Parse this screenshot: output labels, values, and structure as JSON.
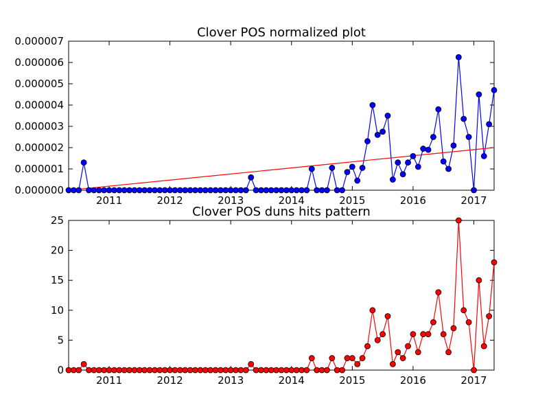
{
  "chart_data": [
    {
      "type": "line",
      "title": "Clover POS normalized plot",
      "xlabel": "",
      "ylabel": "",
      "grid": false,
      "marker": "circle",
      "color": "#0000ff",
      "trend_color": "#ff0000",
      "x_start": "2010-05",
      "x_step_months": 1,
      "xlim": [
        "2010-05",
        "2017-05"
      ],
      "ylim": [
        0,
        7e-06
      ],
      "x_ticks": [
        {
          "label": "2011",
          "x": "2011-01"
        },
        {
          "label": "2012",
          "x": "2012-01"
        },
        {
          "label": "2013",
          "x": "2013-01"
        },
        {
          "label": "2014",
          "x": "2014-01"
        },
        {
          "label": "2015",
          "x": "2015-01"
        },
        {
          "label": "2016",
          "x": "2016-01"
        },
        {
          "label": "2017",
          "x": "2017-01"
        }
      ],
      "y_ticks": [
        {
          "label": "0.000000",
          "y": 0
        },
        {
          "label": "0.000001",
          "y": 1e-06
        },
        {
          "label": "0.000002",
          "y": 2e-06
        },
        {
          "label": "0.000003",
          "y": 3e-06
        },
        {
          "label": "0.000004",
          "y": 4e-06
        },
        {
          "label": "0.000005",
          "y": 5e-06
        },
        {
          "label": "0.000006",
          "y": 6e-06
        },
        {
          "label": "0.000007",
          "y": 7e-06
        }
      ],
      "trend": {
        "start": 0,
        "end": 2e-06
      },
      "series": [
        {
          "values": [
            0,
            0,
            0,
            1.3e-06,
            0,
            0,
            0,
            0,
            0,
            0,
            0,
            0,
            0,
            0,
            0,
            0,
            0,
            0,
            0,
            0,
            0,
            0,
            0,
            0,
            0,
            0,
            0,
            0,
            0,
            0,
            0,
            0,
            0,
            0,
            0,
            0,
            6e-07,
            0,
            0,
            0,
            0,
            0,
            0,
            0,
            0,
            0,
            0,
            0,
            1e-06,
            0,
            0,
            0,
            1.05e-06,
            0,
            0,
            8.5e-07,
            1.1e-06,
            4.5e-07,
            1.05e-06,
            2.3e-06,
            4e-06,
            2.6e-06,
            2.75e-06,
            3.5e-06,
            5e-07,
            1.3e-06,
            7.5e-07,
            1.3e-06,
            1.6e-06,
            1.1e-06,
            1.95e-06,
            1.9e-06,
            2.5e-06,
            3.8e-06,
            1.35e-06,
            1e-06,
            2.1e-06,
            6.25e-06,
            3.35e-06,
            2.5e-06,
            0,
            4.5e-06,
            1.6e-06,
            3.1e-06,
            4.7e-06
          ]
        }
      ]
    },
    {
      "type": "line",
      "title": "Clover POS duns hits pattern",
      "xlabel": "",
      "ylabel": "",
      "grid": false,
      "marker": "circle",
      "color": "#ff0000",
      "x_start": "2010-05",
      "x_step_months": 1,
      "xlim": [
        "2010-05",
        "2017-05"
      ],
      "ylim": [
        0,
        25
      ],
      "x_ticks": [
        {
          "label": "2011",
          "x": "2011-01"
        },
        {
          "label": "2012",
          "x": "2012-01"
        },
        {
          "label": "2013",
          "x": "2013-01"
        },
        {
          "label": "2014",
          "x": "2014-01"
        },
        {
          "label": "2015",
          "x": "2015-01"
        },
        {
          "label": "2016",
          "x": "2016-01"
        },
        {
          "label": "2017",
          "x": "2017-01"
        }
      ],
      "y_ticks": [
        {
          "label": "0",
          "y": 0
        },
        {
          "label": "5",
          "y": 5
        },
        {
          "label": "10",
          "y": 10
        },
        {
          "label": "15",
          "y": 15
        },
        {
          "label": "20",
          "y": 20
        },
        {
          "label": "25",
          "y": 25
        }
      ],
      "series": [
        {
          "values": [
            0,
            0,
            0,
            1,
            0,
            0,
            0,
            0,
            0,
            0,
            0,
            0,
            0,
            0,
            0,
            0,
            0,
            0,
            0,
            0,
            0,
            0,
            0,
            0,
            0,
            0,
            0,
            0,
            0,
            0,
            0,
            0,
            0,
            0,
            0,
            0,
            1,
            0,
            0,
            0,
            0,
            0,
            0,
            0,
            0,
            0,
            0,
            0,
            2,
            0,
            0,
            0,
            2,
            0,
            0,
            2,
            2,
            1,
            2,
            4,
            10,
            5,
            6,
            9,
            1,
            3,
            2,
            4,
            6,
            3,
            6,
            6,
            8,
            13,
            6,
            3,
            7,
            25,
            10,
            8,
            0,
            15,
            4,
            9,
            18
          ]
        }
      ]
    }
  ]
}
